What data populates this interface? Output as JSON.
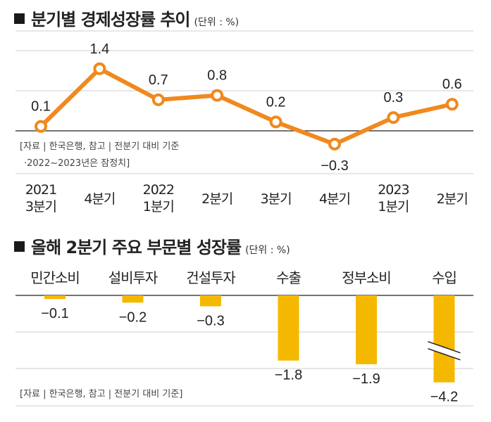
{
  "chart_data": [
    {
      "type": "line",
      "title": "분기별 경제성장률 추이",
      "unit": "(단위 : %)",
      "x_labels": [
        {
          "year": "2021",
          "quarter": "3분기"
        },
        {
          "year": "",
          "quarter": "4분기"
        },
        {
          "year": "2022",
          "quarter": "1분기"
        },
        {
          "year": "",
          "quarter": "2분기"
        },
        {
          "year": "",
          "quarter": "3분기"
        },
        {
          "year": "",
          "quarter": "4분기"
        },
        {
          "year": "2023",
          "quarter": "1분기"
        },
        {
          "year": "",
          "quarter": "2분기"
        }
      ],
      "values": [
        0.1,
        1.4,
        0.7,
        0.8,
        0.2,
        -0.3,
        0.3,
        0.6
      ],
      "value_labels": [
        "0.1",
        "1.4",
        "0.7",
        "0.8",
        "0.2",
        "−0.3",
        "0.3",
        "0.6"
      ],
      "source": "[자료 | 한국은행, 참고 | 전분기 대비 기준",
      "note": "·2022~2023년은 잠정치]",
      "line_color": "#f0891e",
      "ylim": [
        -0.4,
        1.6
      ],
      "grid": true
    },
    {
      "type": "bar",
      "title": "올해 2분기 주요 부문별 성장률",
      "unit": "(단위 : %)",
      "categories": [
        "민간소비",
        "설비투자",
        "건설투자",
        "수출",
        "정부소비",
        "수입"
      ],
      "values": [
        -0.1,
        -0.2,
        -0.3,
        -1.8,
        -1.9,
        -4.2
      ],
      "value_labels": [
        "−0.1",
        "−0.2",
        "−0.3",
        "−1.8",
        "−1.9",
        "−4.2"
      ],
      "source": "[자료 | 한국은행, 참고 | 전분기 대비 기준]",
      "bar_color": "#f5b800",
      "axis_break_on": "수입",
      "ylim": [
        -2.4,
        0
      ],
      "grid": true
    }
  ]
}
